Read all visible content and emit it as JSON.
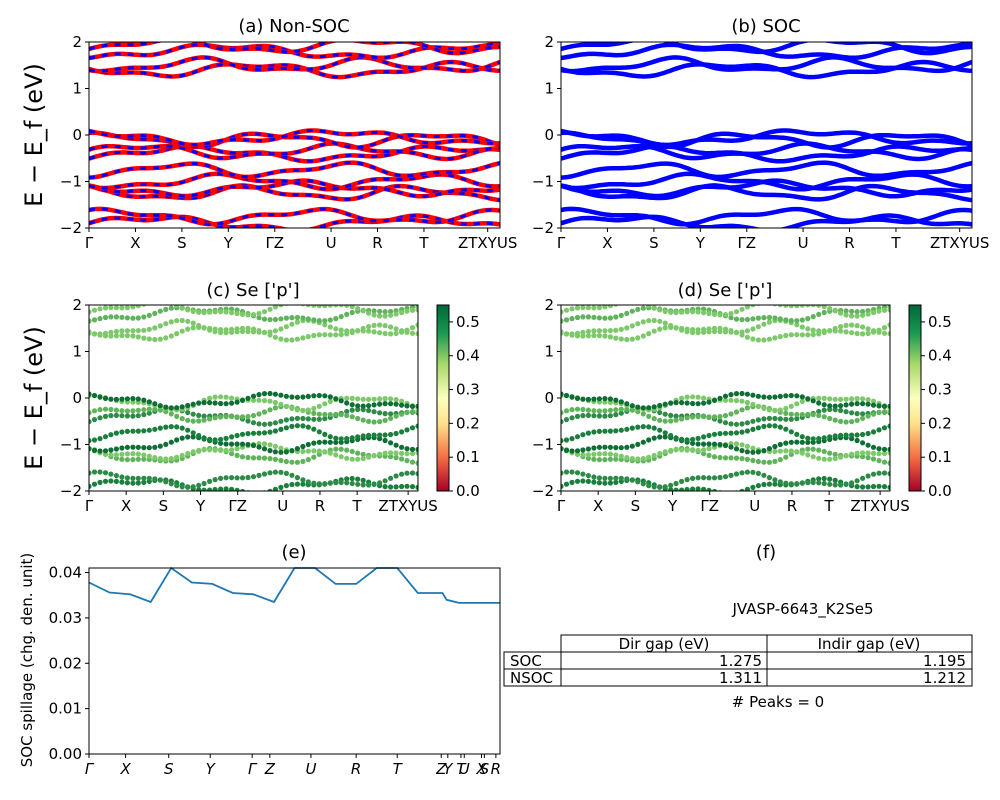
{
  "chart_data": [
    {
      "id": "a",
      "type": "line",
      "title": "(a) Non-SOC",
      "ylabel": "E − E_f (eV)",
      "ylim": [
        -2,
        2
      ],
      "yticks": [
        "−2",
        "−1",
        "0",
        "1",
        "2"
      ],
      "kpoint_labels": [
        "Γ",
        "X",
        "S",
        "Y",
        "ΓZ",
        "U",
        "R",
        "T",
        "ZTXYUS"
      ],
      "bands_eV": [
        -1.9,
        -1.75,
        -1.25,
        -1.15,
        -1.0,
        -0.75,
        -0.4,
        -0.35,
        -0.1,
        -0.05,
        1.4,
        1.5,
        1.8,
        1.92
      ],
      "colors": {
        "line": "#ff0000",
        "dash": "#0000ff"
      }
    },
    {
      "id": "b",
      "type": "line",
      "title": "(b) SOC",
      "ylim": [
        -2,
        2
      ],
      "yticks": [
        "−2",
        "−1",
        "0",
        "1",
        "2"
      ],
      "kpoint_labels": [
        "Γ",
        "X",
        "S",
        "Y",
        "ΓZ",
        "U",
        "R",
        "T",
        "ZTXYUS"
      ],
      "bands_eV": [
        -1.9,
        -1.75,
        -1.25,
        -1.15,
        -1.0,
        -0.75,
        -0.4,
        -0.35,
        -0.1,
        -0.05,
        1.4,
        1.5,
        1.8,
        1.92
      ],
      "colors": {
        "line": "#0000ff"
      }
    },
    {
      "id": "c",
      "type": "scatter",
      "title": "(c)  Se ['p']",
      "ylabel": "E − E_f (eV)",
      "ylim": [
        -2,
        2
      ],
      "yticks": [
        "−2",
        "−1",
        "0",
        "1",
        "2"
      ],
      "kpoint_labels": [
        "Γ",
        "X",
        "S",
        "Y",
        "ΓZ",
        "U",
        "R",
        "T",
        "ZTXYUS"
      ],
      "colorbar": {
        "range": [
          0.0,
          0.55
        ],
        "ticks": [
          "0.0",
          "0.1",
          "0.2",
          "0.3",
          "0.4",
          "0.5"
        ],
        "colormap": "RdYlGn"
      }
    },
    {
      "id": "d",
      "type": "scatter",
      "title": "(d) Se ['p']",
      "ylim": [
        -2,
        2
      ],
      "yticks": [
        "−2",
        "−1",
        "0",
        "1",
        "2"
      ],
      "kpoint_labels": [
        "Γ",
        "X",
        "S",
        "Y",
        "ΓZ",
        "U",
        "R",
        "T",
        "ZTXYUS"
      ],
      "colorbar": {
        "range": [
          0.0,
          0.55
        ],
        "ticks": [
          "0.0",
          "0.1",
          "0.2",
          "0.3",
          "0.4",
          "0.5"
        ],
        "colormap": "RdYlGn"
      }
    },
    {
      "id": "e",
      "type": "line",
      "title": "(e)",
      "ylabel": "SOC spillage (chg. den. unit)",
      "ylim": [
        0,
        0.041
      ],
      "yticks": [
        "0.00",
        "0.01",
        "0.02",
        "0.03",
        "0.04"
      ],
      "kpoint_labels": [
        "Γ",
        "X",
        "S",
        "Y",
        "Γ",
        "Z",
        "U",
        "R",
        "T",
        "Z",
        "Y",
        "T",
        "U",
        "X",
        "S",
        "R"
      ],
      "x": [
        0,
        0.05,
        0.1,
        0.15,
        0.2,
        0.25,
        0.3,
        0.35,
        0.4,
        0.45,
        0.5,
        0.55,
        0.6,
        0.65,
        0.7,
        0.75,
        0.8,
        0.86,
        0.87,
        0.9,
        0.91,
        0.94,
        0.95,
        1.0
      ],
      "values": [
        0.0378,
        0.0356,
        0.0352,
        0.0335,
        0.041,
        0.0378,
        0.0375,
        0.0355,
        0.0352,
        0.0335,
        0.041,
        0.041,
        0.0375,
        0.0375,
        0.041,
        0.041,
        0.0355,
        0.0355,
        0.034,
        0.0333,
        0.0333,
        0.0333,
        0.0333,
        0.0333
      ],
      "series_color": "#1f77b4"
    }
  ],
  "panel_f": {
    "title": "(f)",
    "material": "JVASP-6643_K2Se5",
    "table": {
      "headers": [
        "Dir gap (eV)",
        "Indir gap (eV)"
      ],
      "rows": [
        {
          "label": "SOC",
          "dir": "1.275",
          "indir": "1.195"
        },
        {
          "label": "NSOC",
          "dir": "1.311",
          "indir": "1.212"
        }
      ]
    },
    "peaks": "# Peaks = 0"
  }
}
